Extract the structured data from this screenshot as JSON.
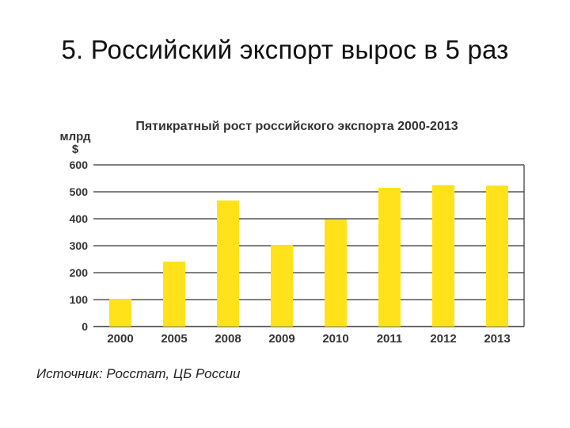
{
  "slide": {
    "title": "5. Российский экспорт вырос в 5 раз",
    "source": "Источник: Росстат, ЦБ России"
  },
  "chart_data": {
    "type": "bar",
    "title": "Пятикратный рост российского экспорта 2000-2013",
    "ylabel_line1": "млрд",
    "ylabel_line2": "$",
    "categories": [
      "2000",
      "2005",
      "2008",
      "2009",
      "2010",
      "2011",
      "2012",
      "2013"
    ],
    "values": [
      103,
      241,
      468,
      302,
      397,
      515,
      525,
      523
    ],
    "ylim": [
      0,
      600
    ],
    "yticks": [
      "0",
      "100",
      "200",
      "300",
      "400",
      "500",
      "600"
    ],
    "grid": true,
    "bar_color": "#ffe21a"
  }
}
